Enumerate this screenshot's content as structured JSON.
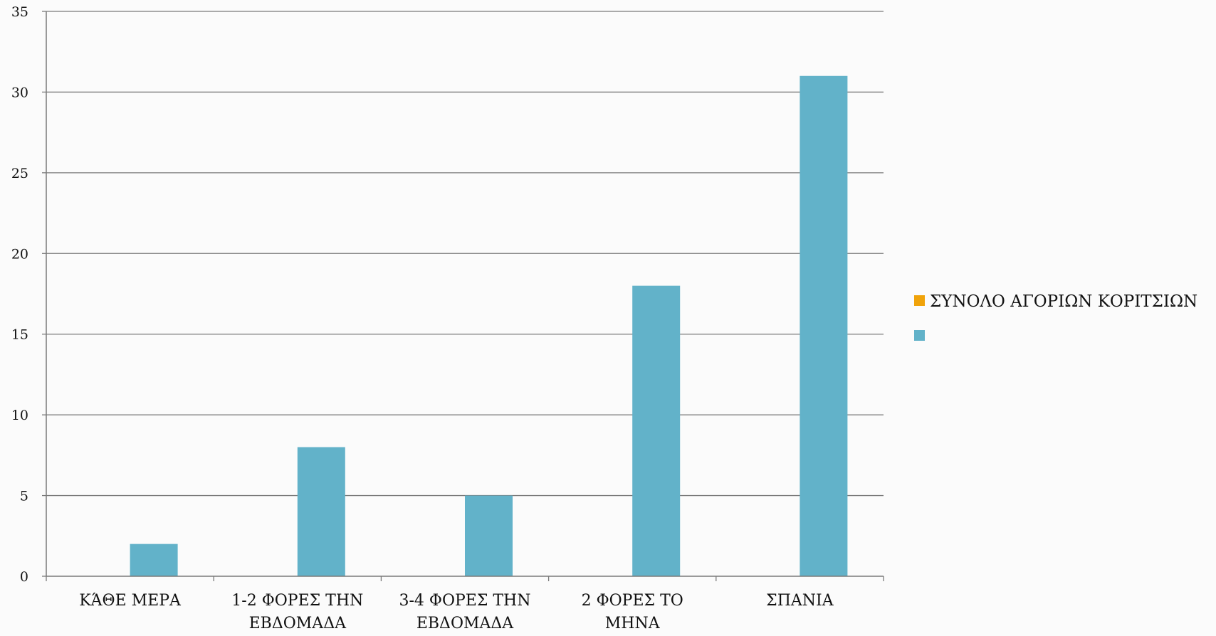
{
  "chart_data": {
    "type": "bar",
    "categories": [
      [
        "ΚΆΘΕ ΜΕΡΑ"
      ],
      [
        "1-2 ΦΟΡΕΣ ΤΗΝ",
        "ΕΒΔΟΜΑΔΑ"
      ],
      [
        "3-4 ΦΟΡΕΣ ΤΗΝ",
        "ΕΒΔΟΜΑΔΑ"
      ],
      [
        "2 ΦΟΡΕΣ ΤΟ",
        "ΜΗΝΑ"
      ],
      [
        "ΣΠΑΝΙΑ"
      ]
    ],
    "series": [
      {
        "name": "ΣΥΝΟΛΟ ΑΓΟΡΙΩΝ ΚΟΡΙΤΣΙΩΝ",
        "color": "#F0A30A",
        "values": [
          0,
          0,
          0,
          0,
          0
        ]
      },
      {
        "name": "",
        "color": "#62B2C9",
        "values": [
          2,
          8,
          5,
          18,
          31
        ]
      }
    ],
    "ylim": [
      0,
      35
    ],
    "yticks": [
      0,
      5,
      10,
      15,
      20,
      25,
      30,
      35
    ],
    "grid": true,
    "legend_position": "right",
    "title": "",
    "xlabel": "",
    "ylabel": ""
  }
}
